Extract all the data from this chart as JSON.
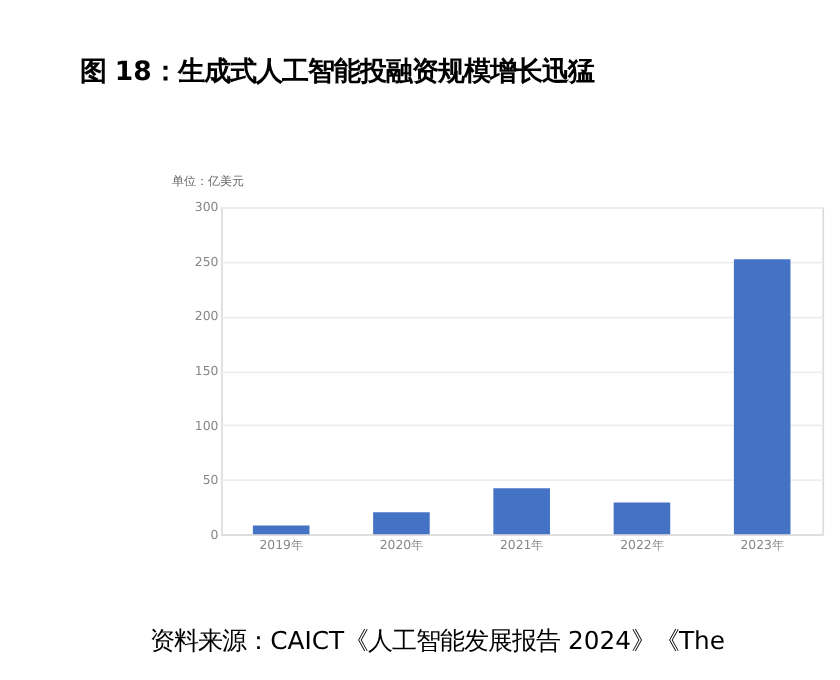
{
  "chart_data": {
    "type": "bar",
    "title": "图 18：生成式人工智能投融资规模增长迅猛",
    "ylabel": "单位：亿美元",
    "categories": [
      "2019年",
      "2020年",
      "2021年",
      "2022年",
      "2023年"
    ],
    "values": [
      8,
      20,
      42,
      29,
      252
    ],
    "color": "#4472c4",
    "ylim": [
      0,
      300
    ],
    "yticks": [
      0,
      50,
      100,
      150,
      200,
      250,
      300
    ],
    "grid": "y",
    "annotations": [
      "资料来源：CAICT《人工智能发展报告 2024》《The"
    ]
  }
}
